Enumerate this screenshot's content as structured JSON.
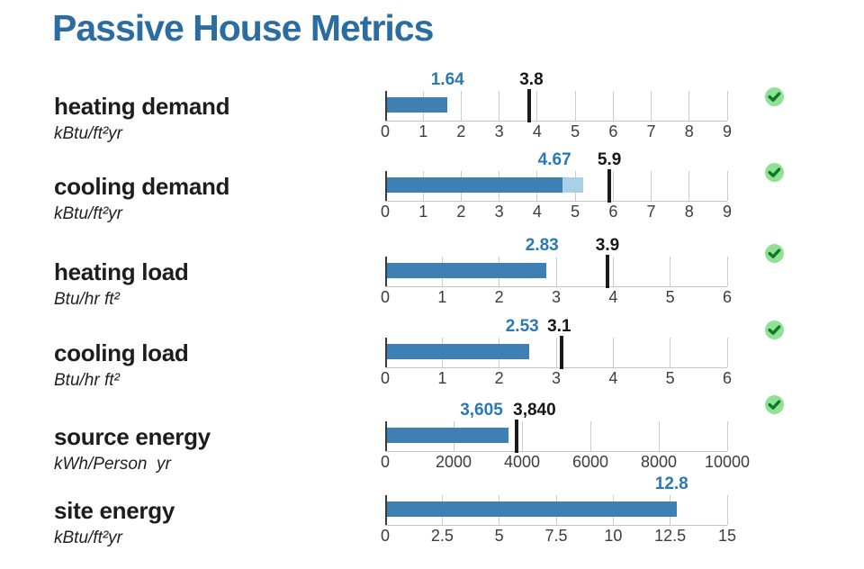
{
  "title": "Passive House Metrics",
  "colors": {
    "title": "#2b6da1",
    "bar": "#3f80b4",
    "bar_secondary": "#a9d0e6",
    "value_label": "#2979b5",
    "limit_label": "#161616",
    "limit_marker": "#1a1a1a",
    "check_circle_fill": "#8ee393",
    "check_mark_stroke": "#16742c"
  },
  "chart_data": [
    {
      "type": "bar",
      "metric": "heating demand",
      "unit": "kBtu/ft²yr",
      "value": 1.64,
      "value_label": "1.64",
      "limit": 3.8,
      "limit_label": "3.8",
      "xlim": [
        0,
        9
      ],
      "tick_values": [
        0,
        1,
        2,
        3,
        4,
        5,
        6,
        7,
        8,
        9
      ],
      "tick_labels": [
        "0",
        "1",
        "2",
        "3",
        "4",
        "5",
        "6",
        "7",
        "8",
        "9"
      ],
      "passed": true
    },
    {
      "type": "bar",
      "metric": "cooling demand",
      "unit": "kBtu/ft²yr",
      "value": 4.67,
      "value_label": "4.67",
      "secondary_value": 5.2,
      "limit": 5.9,
      "limit_label": "5.9",
      "xlim": [
        0,
        9
      ],
      "tick_values": [
        0,
        1,
        2,
        3,
        4,
        5,
        6,
        7,
        8,
        9
      ],
      "tick_labels": [
        "0",
        "1",
        "2",
        "3",
        "4",
        "5",
        "6",
        "7",
        "8",
        "9"
      ],
      "passed": true
    },
    {
      "type": "bar",
      "metric": "heating load",
      "unit": "Btu/hr ft²",
      "value": 2.83,
      "value_label": "2.83",
      "limit": 3.9,
      "limit_label": "3.9",
      "xlim": [
        0,
        6
      ],
      "tick_values": [
        0,
        1,
        2,
        3,
        4,
        5,
        6
      ],
      "tick_labels": [
        "0",
        "1",
        "2",
        "3",
        "4",
        "5",
        "6"
      ],
      "passed": true
    },
    {
      "type": "bar",
      "metric": "cooling load",
      "unit": "Btu/hr ft²",
      "value": 2.53,
      "value_label": "2.53",
      "limit": 3.1,
      "limit_label": "3.1",
      "xlim": [
        0,
        6
      ],
      "tick_values": [
        0,
        1,
        2,
        3,
        4,
        5,
        6
      ],
      "tick_labels": [
        "0",
        "1",
        "2",
        "3",
        "4",
        "5",
        "6"
      ],
      "passed": true
    },
    {
      "type": "bar",
      "metric": "source energy",
      "unit": "kWh/Person  yr",
      "value": 3605,
      "value_label": "3,605",
      "limit": 3840,
      "limit_label": "3,840",
      "xlim": [
        0,
        10000
      ],
      "tick_values": [
        0,
        2000,
        4000,
        6000,
        8000,
        10000
      ],
      "tick_labels": [
        "0",
        "2000",
        "4000",
        "6000",
        "8000",
        "10000"
      ],
      "passed": true
    },
    {
      "type": "bar",
      "metric": "site energy",
      "unit": "kBtu/ft²yr",
      "value": 12.8,
      "value_label": "12.8",
      "limit": null,
      "limit_label": null,
      "xlim": [
        0,
        15
      ],
      "tick_values": [
        0,
        2.5,
        5,
        7.5,
        10,
        12.5,
        15
      ],
      "tick_labels": [
        "0",
        "2.5",
        "5",
        "7.5",
        "10",
        "12.5",
        "15"
      ],
      "passed": null
    }
  ]
}
